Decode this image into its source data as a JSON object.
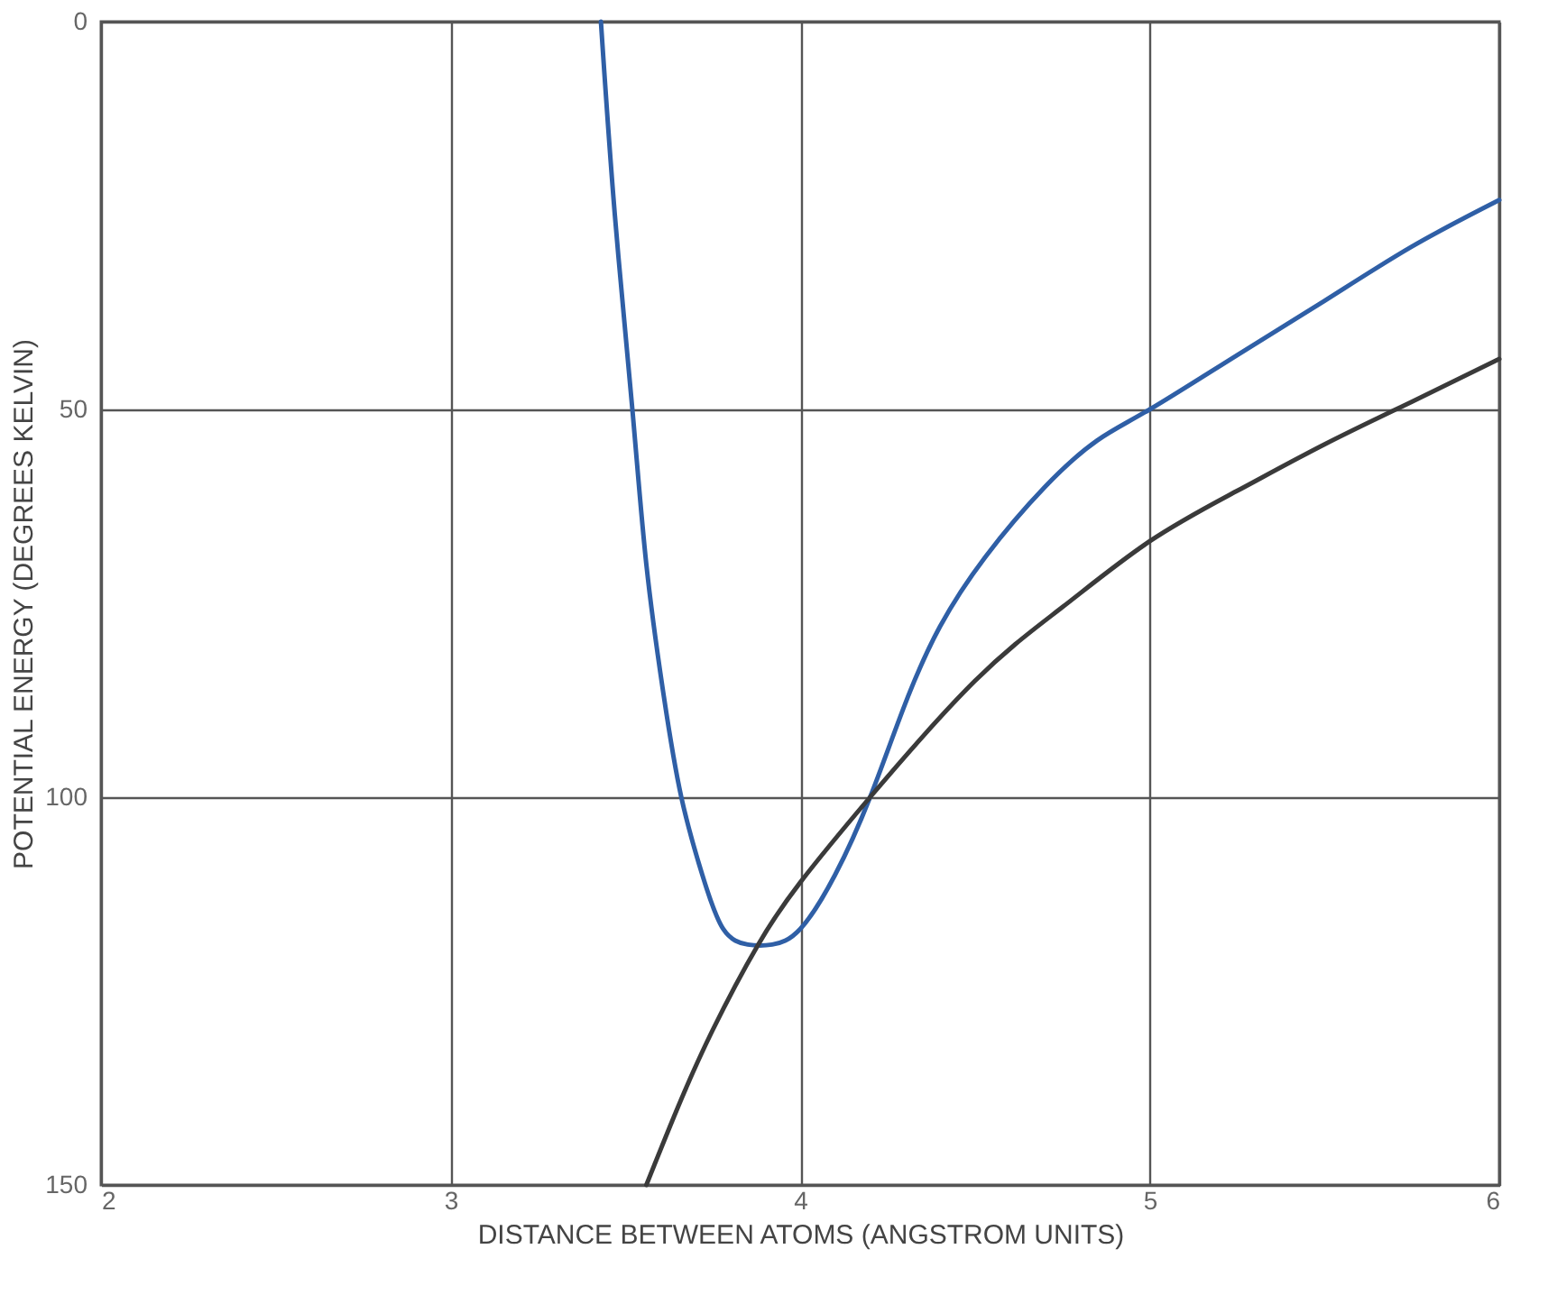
{
  "chart_data": {
    "type": "line",
    "xlabel": "DISTANCE BETWEEN ATOMS (ANGSTROM UNITS)",
    "ylabel": "POTENTIAL ENERGY (DEGREES KELVIN)",
    "xlim": [
      2,
      6
    ],
    "ylim": [
      150,
      0
    ],
    "xticks": [
      2,
      3,
      4,
      5,
      6
    ],
    "yticks": [
      0,
      50,
      100,
      150
    ],
    "grid": true,
    "marker": "none",
    "line_style": "solid",
    "series": [
      {
        "color": "#2f5fa6",
        "x": [
          3.43,
          3.47,
          3.52,
          3.56,
          3.61,
          3.66,
          3.72,
          3.78,
          3.85,
          3.92,
          4.0,
          4.1,
          4.2,
          4.3,
          4.4,
          4.53,
          4.7,
          4.85,
          5.0,
          5.25,
          5.5,
          5.75,
          6.0
        ],
        "values": [
          0,
          25,
          50,
          70,
          87,
          100,
          110,
          117,
          119,
          119,
          117,
          110,
          100,
          88,
          78,
          69,
          60,
          54,
          50,
          43,
          36,
          29,
          23
        ]
      },
      {
        "color": "#3a3a3a",
        "x": [
          3.56,
          3.65,
          3.75,
          3.88,
          4.0,
          4.2,
          4.5,
          4.75,
          5.0,
          5.25,
          5.5,
          5.75,
          6.0
        ],
        "values": [
          150,
          140,
          130,
          119,
          111,
          100,
          85,
          75.5,
          67,
          60.5,
          54.5,
          49,
          43.5
        ]
      }
    ]
  }
}
